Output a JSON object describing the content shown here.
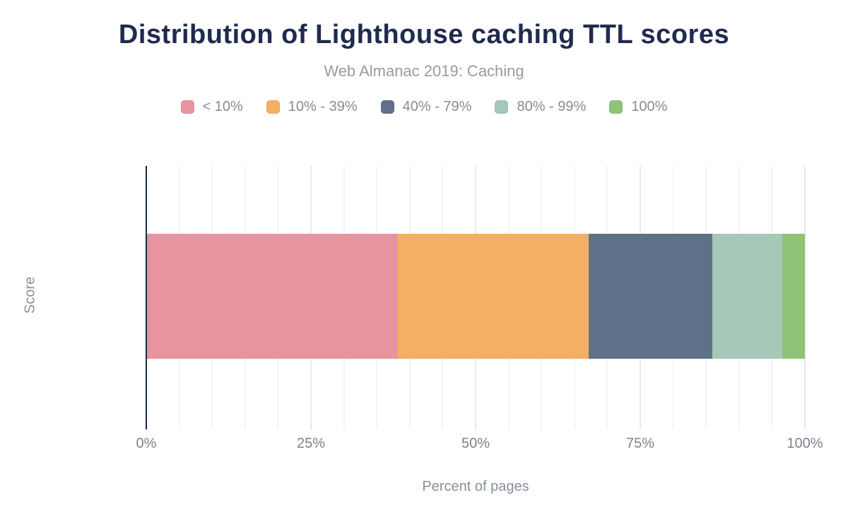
{
  "title": "Distribution of Lighthouse caching TTL scores",
  "subtitle": "Web Almanac 2019: Caching",
  "colors": {
    "title-navy": "#1f2b4e",
    "axis-line": "#16294b",
    "subtitle-text": "#9b9b9b",
    "legend-text": "#8b8b8b",
    "tick-text": "#7d828c",
    "muted-text": "#888f98",
    "grid-minor": "#f3f3f4",
    "grid-major": "#e9e9eb"
  },
  "chart_data": {
    "type": "bar",
    "orientation": "horizontal",
    "stacked": true,
    "title": "Distribution of Lighthouse caching TTL scores",
    "subtitle": "Web Almanac 2019: Caching",
    "categories": [
      "Score"
    ],
    "series": [
      {
        "name": "< 10%",
        "values": [
          38.2
        ],
        "color": "#e8949e"
      },
      {
        "name": "10% - 39%",
        "values": [
          29.0
        ],
        "color": "#f5af63"
      },
      {
        "name": "40% - 79%",
        "values": [
          18.7
        ],
        "color": "#5f7189"
      },
      {
        "name": "80% - 99%",
        "values": [
          10.7
        ],
        "color": "#a6c8b8"
      },
      {
        "name": "100%",
        "values": [
          3.4
        ],
        "color": "#8fc377"
      }
    ],
    "xlabel": "Percent of pages",
    "ylabel": "Score",
    "xlim": [
      0,
      100
    ],
    "x_ticks": [
      {
        "label": "0%",
        "value": 0
      },
      {
        "label": "25%",
        "value": 25
      },
      {
        "label": "50%",
        "value": 50
      },
      {
        "label": "75%",
        "value": 75
      },
      {
        "label": "100%",
        "value": 100
      }
    ],
    "minor_grid_step": 5,
    "major_grid_step": 25,
    "grid": true,
    "legend_position": "top"
  }
}
